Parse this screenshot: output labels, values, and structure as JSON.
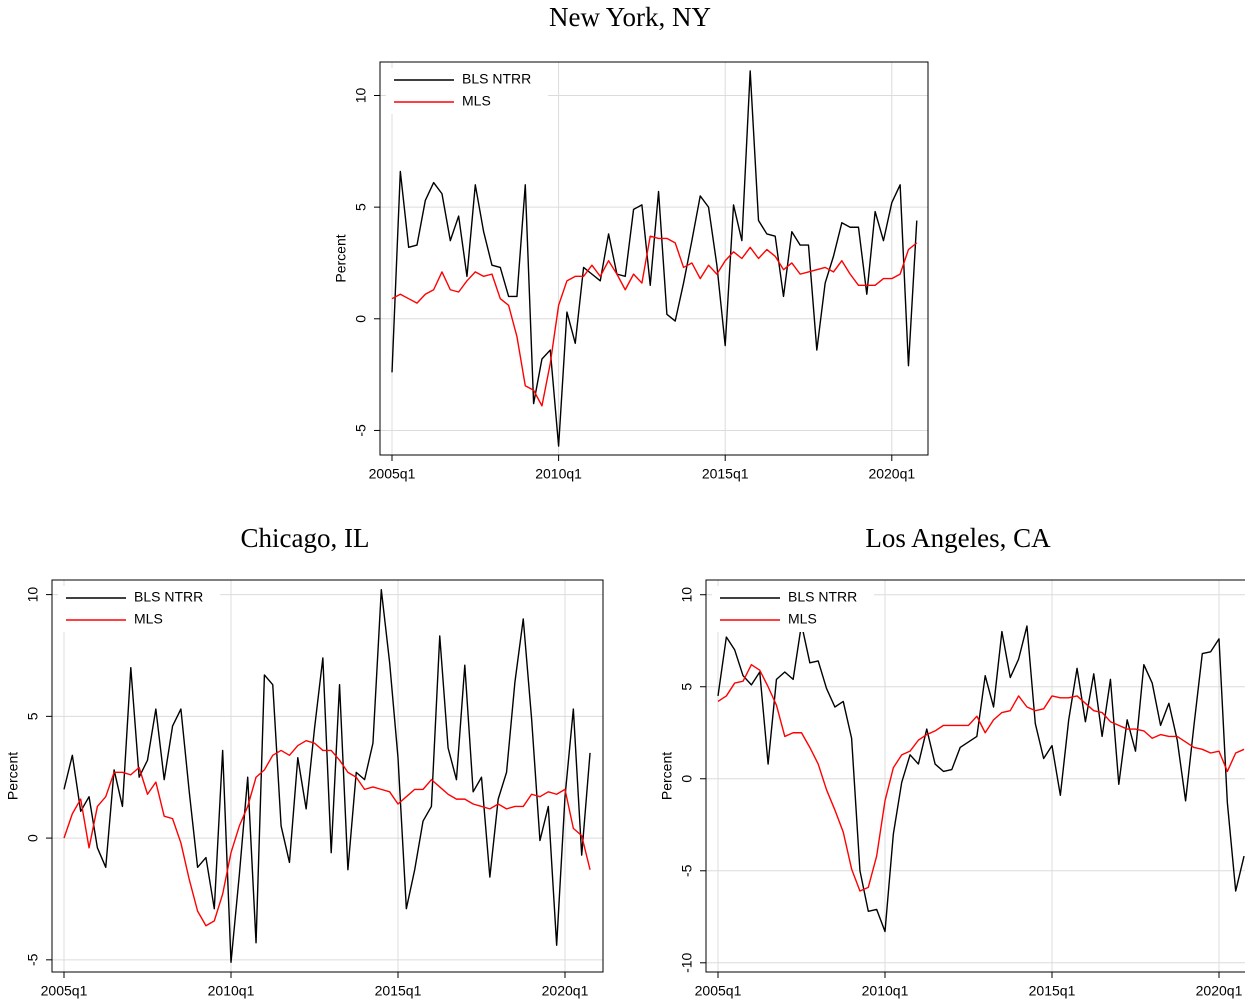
{
  "chart_data": [
    {
      "type": "line",
      "title": "New York, NY",
      "y_label": "Percent",
      "categories": [
        "2005q1",
        null,
        null,
        null,
        null,
        null,
        null,
        null,
        null,
        null,
        null,
        null,
        null,
        null,
        null,
        null,
        null,
        null,
        null,
        null,
        "2010q1",
        null,
        null,
        null,
        null,
        null,
        null,
        null,
        null,
        null,
        null,
        null,
        null,
        null,
        null,
        null,
        null,
        null,
        null,
        null,
        "2015q1",
        null,
        null,
        null,
        null,
        null,
        null,
        null,
        null,
        null,
        null,
        null,
        null,
        null,
        null,
        null,
        null,
        null,
        null,
        null,
        "2020q1",
        null,
        null,
        null
      ],
      "series": [
        {
          "name": "BLS NTRR",
          "color": "#000000",
          "values": [
            -2.4,
            6.6,
            3.2,
            3.3,
            5.3,
            6.1,
            5.6,
            3.5,
            4.6,
            1.9,
            6.0,
            3.9,
            2.4,
            2.3,
            1.0,
            1.0,
            6.0,
            -3.8,
            -1.8,
            -1.4,
            -5.7,
            0.3,
            -1.1,
            2.3,
            2.0,
            1.7,
            3.8,
            2.0,
            1.9,
            4.9,
            5.1,
            1.5,
            5.7,
            0.2,
            -0.1,
            1.6,
            3.5,
            5.5,
            5.0,
            2.4,
            -1.2,
            5.1,
            3.5,
            11.1,
            4.4,
            3.8,
            3.7,
            1.0,
            3.9,
            3.3,
            3.3,
            -1.4,
            1.6,
            2.8,
            4.3,
            4.1,
            4.1,
            1.1,
            4.8,
            3.5,
            5.2,
            6.0,
            -2.1,
            4.4
          ]
        },
        {
          "name": "MLS",
          "color": "#ff0000",
          "values": [
            0.9,
            1.1,
            0.9,
            0.7,
            1.1,
            1.3,
            2.1,
            1.3,
            1.2,
            1.7,
            2.1,
            1.9,
            2.0,
            0.9,
            0.6,
            -0.8,
            -3.0,
            -3.2,
            -3.9,
            -2.0,
            0.6,
            1.7,
            1.9,
            1.9,
            2.4,
            1.9,
            2.6,
            2.0,
            1.3,
            2.0,
            1.6,
            3.7,
            3.6,
            3.6,
            3.4,
            2.3,
            2.5,
            1.8,
            2.4,
            2.0,
            2.6,
            3.0,
            2.7,
            3.2,
            2.7,
            3.1,
            2.8,
            2.2,
            2.5,
            2.0,
            2.1,
            2.2,
            2.3,
            2.1,
            2.6,
            2.0,
            1.5,
            1.5,
            1.5,
            1.8,
            1.8,
            2.0,
            3.1,
            3.4
          ]
        }
      ],
      "ylim": [
        -6.1,
        11.5
      ],
      "yticks": [
        -5,
        0,
        5,
        10
      ],
      "grid": true,
      "legend": "top-left"
    },
    {
      "type": "line",
      "title": "Chicago, IL",
      "y_label": "Percent",
      "categories": [
        "2005q1",
        null,
        null,
        null,
        null,
        null,
        null,
        null,
        null,
        null,
        null,
        null,
        null,
        null,
        null,
        null,
        null,
        null,
        null,
        null,
        "2010q1",
        null,
        null,
        null,
        null,
        null,
        null,
        null,
        null,
        null,
        null,
        null,
        null,
        null,
        null,
        null,
        null,
        null,
        null,
        null,
        "2015q1",
        null,
        null,
        null,
        null,
        null,
        null,
        null,
        null,
        null,
        null,
        null,
        null,
        null,
        null,
        null,
        null,
        null,
        null,
        null,
        "2020q1",
        null,
        null,
        null
      ],
      "series": [
        {
          "name": "BLS NTRR",
          "color": "#000000",
          "values": [
            2.0,
            3.4,
            1.1,
            1.7,
            -0.4,
            -1.2,
            2.8,
            1.3,
            7.0,
            2.5,
            3.2,
            5.3,
            2.4,
            4.6,
            5.3,
            1.9,
            -1.2,
            -0.8,
            -2.9,
            3.6,
            -5.1,
            -1.5,
            2.5,
            -4.3,
            6.7,
            6.3,
            0.5,
            -1.0,
            3.3,
            1.2,
            4.5,
            7.4,
            -0.6,
            6.3,
            -1.3,
            2.7,
            2.4,
            3.9,
            10.2,
            7.2,
            3.3,
            -2.9,
            -1.3,
            0.7,
            1.3,
            8.3,
            3.7,
            2.4,
            7.1,
            1.9,
            2.5,
            -1.6,
            1.6,
            2.7,
            6.4,
            9.0,
            4.9,
            -0.1,
            1.3,
            -4.4,
            1.7,
            5.3,
            -0.7,
            3.5
          ]
        },
        {
          "name": "MLS",
          "color": "#ff0000",
          "values": [
            0.0,
            1.0,
            1.6,
            -0.4,
            1.3,
            1.7,
            2.7,
            2.7,
            2.6,
            2.9,
            1.8,
            2.3,
            0.9,
            0.8,
            -0.2,
            -1.7,
            -3.0,
            -3.6,
            -3.4,
            -2.3,
            -0.6,
            0.5,
            1.3,
            2.5,
            2.8,
            3.4,
            3.6,
            3.4,
            3.8,
            4.0,
            3.9,
            3.6,
            3.6,
            3.2,
            2.7,
            2.5,
            2.0,
            2.1,
            2.0,
            1.9,
            1.4,
            1.7,
            2.0,
            2.0,
            2.4,
            2.1,
            1.8,
            1.6,
            1.6,
            1.4,
            1.3,
            1.2,
            1.4,
            1.2,
            1.3,
            1.3,
            1.8,
            1.7,
            1.9,
            1.8,
            2.0,
            0.4,
            0.1,
            -1.3
          ]
        }
      ],
      "ylim": [
        -5.5,
        10.6
      ],
      "yticks": [
        -5,
        0,
        5,
        10
      ],
      "grid": true,
      "legend": "top-left"
    },
    {
      "type": "line",
      "title": "Los Angeles, CA",
      "y_label": "Percent",
      "categories": [
        "2005q1",
        null,
        null,
        null,
        null,
        null,
        null,
        null,
        null,
        null,
        null,
        null,
        null,
        null,
        null,
        null,
        null,
        null,
        null,
        null,
        "2010q1",
        null,
        null,
        null,
        null,
        null,
        null,
        null,
        null,
        null,
        null,
        null,
        null,
        null,
        null,
        null,
        null,
        null,
        null,
        null,
        "2015q1",
        null,
        null,
        null,
        null,
        null,
        null,
        null,
        null,
        null,
        null,
        null,
        null,
        null,
        null,
        null,
        null,
        null,
        null,
        null,
        "2020q1",
        null,
        null,
        null
      ],
      "series": [
        {
          "name": "BLS NTRR",
          "color": "#000000",
          "values": [
            4.5,
            7.7,
            7.0,
            5.6,
            5.1,
            5.8,
            0.8,
            5.4,
            5.8,
            5.4,
            8.4,
            6.3,
            6.4,
            4.9,
            3.9,
            4.2,
            2.2,
            -5.0,
            -7.2,
            -7.1,
            -8.3,
            -3.0,
            -0.2,
            1.3,
            0.8,
            2.7,
            0.8,
            0.4,
            0.5,
            1.7,
            2.0,
            2.3,
            5.6,
            3.9,
            8.0,
            5.5,
            6.5,
            8.3,
            3.0,
            1.1,
            1.8,
            -0.9,
            3.2,
            6.0,
            3.1,
            5.7,
            2.3,
            5.4,
            -0.3,
            3.2,
            1.5,
            6.2,
            5.2,
            2.9,
            4.1,
            2.1,
            -1.2,
            2.9,
            6.8,
            6.9,
            7.6,
            -1.3,
            -6.1,
            -4.2
          ]
        },
        {
          "name": "MLS",
          "color": "#ff0000",
          "values": [
            4.2,
            4.5,
            5.2,
            5.3,
            6.2,
            5.9,
            5.0,
            4.0,
            2.3,
            2.5,
            2.5,
            1.7,
            0.8,
            -0.6,
            -1.7,
            -2.9,
            -4.9,
            -6.1,
            -5.9,
            -4.2,
            -1.2,
            0.6,
            1.3,
            1.5,
            2.1,
            2.4,
            2.6,
            2.9,
            2.9,
            2.9,
            2.9,
            3.4,
            2.5,
            3.2,
            3.6,
            3.7,
            4.5,
            3.9,
            3.7,
            3.8,
            4.5,
            4.4,
            4.4,
            4.5,
            4.1,
            3.7,
            3.6,
            3.1,
            2.9,
            2.7,
            2.7,
            2.6,
            2.2,
            2.4,
            2.3,
            2.3,
            2.0,
            1.7,
            1.6,
            1.4,
            1.5,
            0.4,
            1.4,
            1.6
          ]
        }
      ],
      "ylim": [
        -10.5,
        10.8
      ],
      "yticks": [
        -10,
        -5,
        0,
        5,
        10
      ],
      "grid": true,
      "legend": "top-left"
    }
  ]
}
